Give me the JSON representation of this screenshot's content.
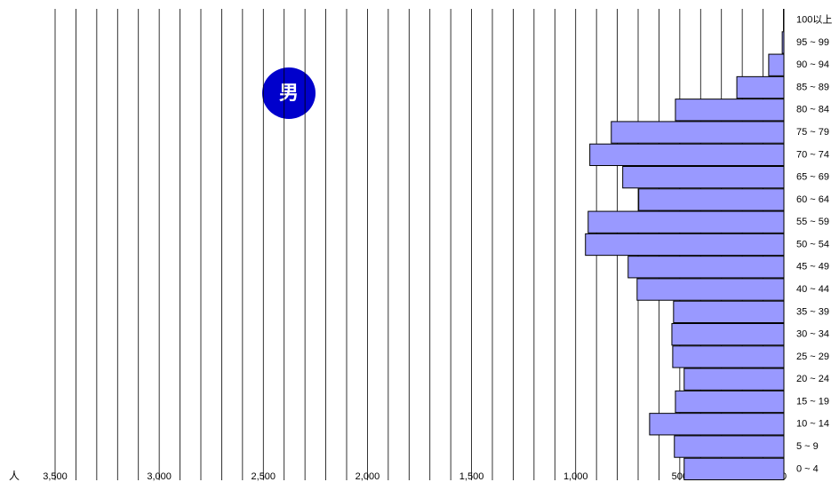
{
  "chart_data": {
    "type": "barh",
    "label": "男",
    "unit": "人",
    "categories": [
      "0 ~ 4",
      "5 ~ 9",
      "10 ~ 14",
      "15 ~ 19",
      "20 ~ 24",
      "25 ~ 29",
      "30 ~ 34",
      "35 ~ 39",
      "40 ~ 44",
      "45 ~ 49",
      "50 ~ 54",
      "55 ~ 59",
      "60 ~ 64",
      "65 ~ 69",
      "70 ~ 74",
      "75 ~ 79",
      "80 ~ 84",
      "85 ~ 89",
      "90 ~ 94",
      "95 ~ 99",
      "100以上"
    ],
    "values": [
      479,
      526,
      645,
      521,
      479,
      534,
      538,
      530,
      705,
      748,
      953,
      940,
      697,
      774,
      932,
      829,
      521,
      226,
      73,
      8,
      2
    ],
    "color": "#9999ff",
    "xlim": [
      3500,
      0
    ],
    "xticks": [
      {
        "value": 3500,
        "label": "3,500"
      },
      {
        "value": 3000,
        "label": "3,000"
      },
      {
        "value": 2500,
        "label": "2,500"
      },
      {
        "value": 2000,
        "label": "2,000"
      },
      {
        "value": 1500,
        "label": "1,500"
      },
      {
        "value": 1000,
        "label": "1,000"
      },
      500,
      0
    ],
    "xgrid": [
      3500,
      3400,
      3300,
      3200,
      3100,
      3000,
      2900,
      2800,
      2700,
      2600,
      2500,
      2400,
      2300,
      2200,
      2100,
      2000,
      1900,
      1800,
      1700,
      1600,
      1500,
      1400,
      1300,
      1200,
      1100,
      1000,
      900,
      800,
      700,
      600,
      500,
      400,
      300,
      200,
      100,
      0
    ]
  }
}
